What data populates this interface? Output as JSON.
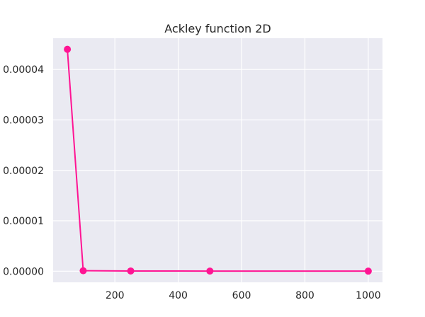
{
  "chart_data": {
    "type": "line",
    "title": "Ackley function 2D",
    "xlabel": "",
    "ylabel": "",
    "x": [
      50,
      100,
      250,
      500,
      1000
    ],
    "series": [
      {
        "values": [
          4.4e-05,
          1e-07,
          5e-08,
          3e-08,
          2e-08
        ],
        "color": "#ff1493"
      }
    ],
    "xlim": [
      5,
      1045
    ],
    "ylim": [
      -2.2e-06,
      4.62e-05
    ],
    "x_ticks": [
      200,
      400,
      600,
      800,
      1000
    ],
    "x_tick_labels": [
      "200",
      "400",
      "600",
      "800",
      "1000"
    ],
    "y_ticks": [
      0,
      1e-05,
      2e-05,
      3e-05,
      4e-05
    ],
    "y_tick_labels": [
      "0.00000",
      "0.00001",
      "0.00002",
      "0.00003",
      "0.00004"
    ],
    "grid": true,
    "legend": "none",
    "colors": {
      "plot_background": "#eaeaf2",
      "grid": "#ffffff",
      "series": "#ff1493",
      "text": "#262626"
    }
  }
}
